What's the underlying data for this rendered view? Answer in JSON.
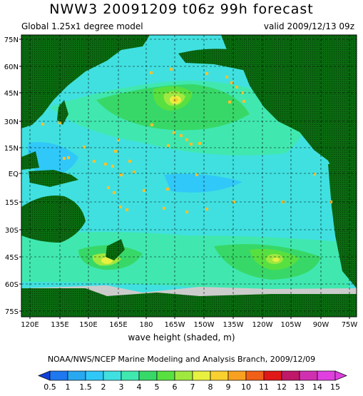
{
  "header": {
    "title": "NWW3 20091209 t06z  99h forecast",
    "left_subtitle": "Global 1.25x1 degree model",
    "right_subtitle": "valid 2009/12/13 09z"
  },
  "axes": {
    "lat_labels": [
      "75N",
      "60N",
      "45N",
      "30N",
      "15N",
      "EQ",
      "15S",
      "30S",
      "45S",
      "60S",
      "75S"
    ],
    "lon_labels": [
      "120E",
      "135E",
      "150E",
      "165E",
      "180",
      "165W",
      "150W",
      "135W",
      "120W",
      "105W",
      "90W",
      "75W"
    ]
  },
  "xlabel": "wave height (shaded, m)",
  "credit": "NOAA/NWS/NCEP Marine Modeling and Analysis Branch, 2009/12/09",
  "colorbar": {
    "labels": [
      "0.5",
      "1",
      "1.5",
      "2",
      "3",
      "4",
      "5",
      "6",
      "7",
      "8",
      "9",
      "10",
      "11",
      "12",
      "13",
      "14",
      "15"
    ],
    "colors": [
      "#1040d8",
      "#1e78f0",
      "#28a8f0",
      "#30c8f8",
      "#40e0e0",
      "#40e8b0",
      "#38d868",
      "#58e040",
      "#a0e840",
      "#e8f040",
      "#f8d030",
      "#f8a020",
      "#f06018",
      "#e01818",
      "#c01868",
      "#d030b0",
      "#e040e0"
    ]
  },
  "chart_data": {
    "type": "heatmap",
    "title": "NWW3 20091209 t06z  99h forecast",
    "variable": "wave height (shaded, m)",
    "lon_range": [
      "110E",
      "70W"
    ],
    "lat_range": [
      "77S",
      "77N"
    ],
    "grid": true,
    "colorbar_levels_m": [
      0.5,
      1,
      1.5,
      2,
      3,
      4,
      5,
      6,
      7,
      8,
      9,
      10,
      11,
      12,
      13,
      14,
      15
    ],
    "maxima": [
      {
        "region": "North Pacific (~43N, 170W)",
        "max_height_m": 8
      },
      {
        "region": "Southwest Pacific (~47S, 165E)",
        "max_height_m": 7
      },
      {
        "region": "Southeast Pacific (~47S, 115W)",
        "max_height_m": 7
      }
    ]
  },
  "colors": {
    "land": "#0a6a10",
    "ice": "#cccccc",
    "background_sea": "#40e0e0"
  }
}
